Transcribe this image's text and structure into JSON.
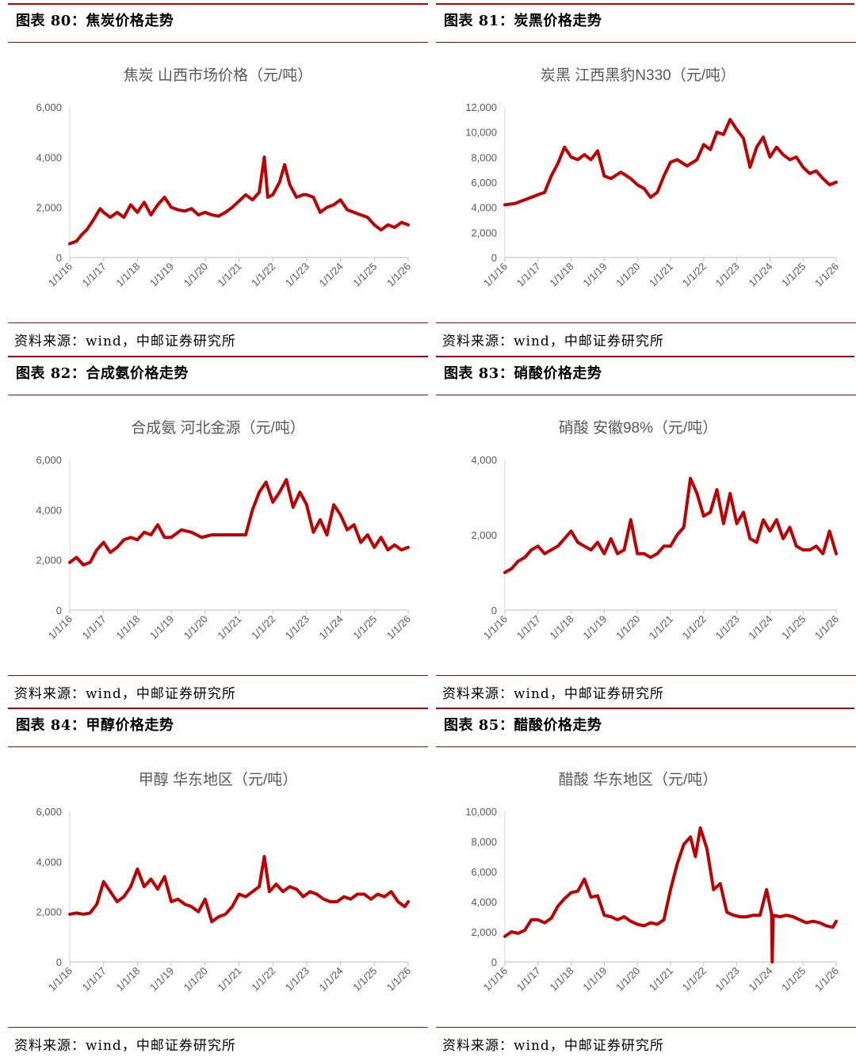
{
  "source_text": "资料来源：wind，中邮证券研究所",
  "colors": {
    "accent": "#c00000",
    "series": "#c00000"
  },
  "panels": [
    {
      "id": "fig80",
      "title": "图表 80：焦炭价格走势",
      "chart_data": {
        "type": "line",
        "title": "焦炭 山西市场价格（元/吨）",
        "x_ticks": [
          "1/1/16",
          "1/1/17",
          "1/1/18",
          "1/1/19",
          "1/1/20",
          "1/1/21",
          "1/1/22",
          "1/1/23",
          "1/1/24",
          "1/1/25",
          "1/1/26"
        ],
        "y_ticks": [
          "0",
          "2,000",
          "4,000",
          "6,000"
        ],
        "ylim": [
          0,
          6000
        ],
        "xlim": [
          2016.0,
          2026.0
        ],
        "series": [
          {
            "x": [
              2016.0,
              2016.2,
              2016.35,
              2016.5,
              2016.7,
              2016.9,
              2017.0,
              2017.2,
              2017.4,
              2017.6,
              2017.8,
              2018.0,
              2018.2,
              2018.4,
              2018.6,
              2018.8,
              2019.0,
              2019.2,
              2019.4,
              2019.6,
              2019.8,
              2020.0,
              2020.2,
              2020.4,
              2020.6,
              2020.8,
              2021.0,
              2021.2,
              2021.4,
              2021.6,
              2021.75,
              2021.85,
              2022.0,
              2022.2,
              2022.35,
              2022.5,
              2022.7,
              2022.9,
              2023.0,
              2023.2,
              2023.4,
              2023.6,
              2023.8,
              2024.0,
              2024.2,
              2024.4,
              2024.6,
              2024.8,
              2025.0,
              2025.2,
              2025.4,
              2025.6,
              2025.8,
              2026.0
            ],
            "y": [
              550,
              650,
              900,
              1100,
              1500,
              1950,
              1800,
              1600,
              1800,
              1600,
              2100,
              1800,
              2200,
              1700,
              2100,
              2400,
              2000,
              1900,
              1850,
              1950,
              1700,
              1800,
              1700,
              1650,
              1800,
              2000,
              2250,
              2500,
              2300,
              2600,
              4000,
              2400,
              2500,
              3000,
              3700,
              2900,
              2400,
              2500,
              2500,
              2400,
              1800,
              2000,
              2100,
              2300,
              1900,
              1800,
              1700,
              1600,
              1300,
              1100,
              1300,
              1200,
              1400,
              1300
            ]
          }
        ]
      }
    },
    {
      "id": "fig81",
      "title": "图表 81：炭黑价格走势",
      "chart_data": {
        "type": "line",
        "title": "炭黑 江西黑豹N330（元/吨）",
        "x_ticks": [
          "1/1/16",
          "1/1/17",
          "1/1/18",
          "1/1/19",
          "1/1/20",
          "1/1/21",
          "1/1/22",
          "1/1/23",
          "1/1/24",
          "1/1/25",
          "1/1/26"
        ],
        "y_ticks": [
          "0",
          "2,000",
          "4,000",
          "6,000",
          "8,000",
          "10,000",
          "12,000"
        ],
        "ylim": [
          0,
          12000
        ],
        "xlim": [
          2016.0,
          2026.0
        ],
        "series": [
          {
            "x": [
              2016.0,
              2016.3,
              2016.5,
              2016.8,
              2017.0,
              2017.2,
              2017.4,
              2017.6,
              2017.8,
              2018.0,
              2018.2,
              2018.4,
              2018.6,
              2018.8,
              2019.0,
              2019.2,
              2019.5,
              2019.8,
              2020.0,
              2020.2,
              2020.4,
              2020.6,
              2020.8,
              2021.0,
              2021.2,
              2021.5,
              2021.8,
              2022.0,
              2022.2,
              2022.4,
              2022.6,
              2022.8,
              2023.0,
              2023.2,
              2023.4,
              2023.6,
              2023.8,
              2024.0,
              2024.2,
              2024.4,
              2024.6,
              2024.8,
              2025.0,
              2025.2,
              2025.4,
              2025.6,
              2025.8,
              2026.0
            ],
            "y": [
              4200,
              4300,
              4500,
              4800,
              5000,
              5200,
              6500,
              7500,
              8800,
              8000,
              7800,
              8200,
              7800,
              8500,
              6500,
              6300,
              6800,
              6300,
              5800,
              5500,
              4800,
              5200,
              6500,
              7600,
              7800,
              7300,
              7800,
              9000,
              8600,
              10000,
              9800,
              11000,
              10200,
              9500,
              7200,
              8800,
              9600,
              8000,
              8800,
              8200,
              7800,
              8000,
              7200,
              6700,
              6900,
              6300,
              5800,
              6000
            ]
          }
        ]
      }
    },
    {
      "id": "fig82",
      "title": "图表 82：合成氨价格走势",
      "chart_data": {
        "type": "line",
        "title": "合成氨 河北金源（元/吨）",
        "x_ticks": [
          "1/1/16",
          "1/1/17",
          "1/1/18",
          "1/1/19",
          "1/1/20",
          "1/1/21",
          "1/1/22",
          "1/1/23",
          "1/1/24",
          "1/1/25",
          "1/1/26"
        ],
        "y_ticks": [
          "0",
          "2,000",
          "4,000",
          "6,000"
        ],
        "ylim": [
          0,
          6000
        ],
        "xlim": [
          2016.0,
          2026.0
        ],
        "series": [
          {
            "x": [
              2016.0,
              2016.2,
              2016.4,
              2016.6,
              2016.8,
              2017.0,
              2017.2,
              2017.4,
              2017.6,
              2017.8,
              2018.0,
              2018.2,
              2018.4,
              2018.6,
              2018.8,
              2019.0,
              2019.3,
              2019.6,
              2019.9,
              2020.2,
              2020.5,
              2020.8,
              2021.0,
              2021.2,
              2021.4,
              2021.6,
              2021.8,
              2022.0,
              2022.2,
              2022.4,
              2022.6,
              2022.8,
              2023.0,
              2023.2,
              2023.4,
              2023.6,
              2023.8,
              2024.0,
              2024.2,
              2024.4,
              2024.6,
              2024.8,
              2025.0,
              2025.2,
              2025.4,
              2025.6,
              2025.8,
              2026.0
            ],
            "y": [
              1900,
              2100,
              1800,
              1900,
              2400,
              2700,
              2300,
              2500,
              2800,
              2900,
              2800,
              3100,
              3000,
              3400,
              2900,
              2900,
              3200,
              3100,
              2900,
              3000,
              3000,
              3000,
              3000,
              3000,
              4000,
              4700,
              5100,
              4300,
              4700,
              5200,
              4100,
              4700,
              4200,
              3100,
              3600,
              3000,
              4200,
              3800,
              3200,
              3400,
              2700,
              3000,
              2500,
              2900,
              2400,
              2600,
              2400,
              2500
            ]
          }
        ]
      }
    },
    {
      "id": "fig83",
      "title": "图表 83：硝酸价格走势",
      "chart_data": {
        "type": "line",
        "title": "硝酸 安徽98%（元/吨）",
        "x_ticks": [
          "1/1/16",
          "1/1/17",
          "1/1/18",
          "1/1/19",
          "1/1/20",
          "1/1/21",
          "1/1/22",
          "1/1/23",
          "1/1/24",
          "1/1/25",
          "1/1/26"
        ],
        "y_ticks": [
          "0",
          "2,000",
          "4,000"
        ],
        "ylim": [
          0,
          4000
        ],
        "xlim": [
          2016.0,
          2026.0
        ],
        "series": [
          {
            "x": [
              2016.0,
              2016.2,
              2016.4,
              2016.6,
              2016.8,
              2017.0,
              2017.2,
              2017.4,
              2017.6,
              2017.8,
              2018.0,
              2018.2,
              2018.4,
              2018.6,
              2018.8,
              2019.0,
              2019.2,
              2019.4,
              2019.6,
              2019.8,
              2020.0,
              2020.2,
              2020.4,
              2020.6,
              2020.8,
              2021.0,
              2021.2,
              2021.4,
              2021.6,
              2021.8,
              2022.0,
              2022.2,
              2022.4,
              2022.6,
              2022.8,
              2023.0,
              2023.2,
              2023.4,
              2023.6,
              2023.8,
              2024.0,
              2024.2,
              2024.4,
              2024.6,
              2024.8,
              2025.0,
              2025.2,
              2025.4,
              2025.6,
              2025.8,
              2026.0
            ],
            "y": [
              1000,
              1100,
              1300,
              1400,
              1600,
              1700,
              1500,
              1600,
              1700,
              1900,
              2100,
              1800,
              1700,
              1600,
              1800,
              1500,
              1900,
              1500,
              1600,
              2400,
              1500,
              1500,
              1400,
              1500,
              1700,
              1700,
              2000,
              2200,
              3500,
              3100,
              2500,
              2600,
              3200,
              2300,
              3100,
              2300,
              2600,
              1900,
              1800,
              2400,
              2100,
              2400,
              1900,
              2200,
              1700,
              1600,
              1600,
              1700,
              1500,
              2100,
              1500
            ]
          }
        ]
      }
    },
    {
      "id": "fig84",
      "title": "图表 84：甲醇价格走势",
      "chart_data": {
        "type": "line",
        "title": "甲醇 华东地区（元/吨）",
        "x_ticks": [
          "1/1/16",
          "1/1/17",
          "1/1/18",
          "1/1/19",
          "1/1/20",
          "1/1/21",
          "1/1/22",
          "1/1/23",
          "1/1/24",
          "1/1/25",
          "1/1/26"
        ],
        "y_ticks": [
          "0",
          "2,000",
          "4,000",
          "6,000"
        ],
        "ylim": [
          0,
          6000
        ],
        "xlim": [
          2016.0,
          2026.0
        ],
        "series": [
          {
            "x": [
              2016.0,
              2016.2,
              2016.4,
              2016.6,
              2016.8,
              2017.0,
              2017.2,
              2017.4,
              2017.6,
              2017.8,
              2018.0,
              2018.2,
              2018.4,
              2018.6,
              2018.8,
              2019.0,
              2019.2,
              2019.4,
              2019.6,
              2019.8,
              2020.0,
              2020.2,
              2020.4,
              2020.6,
              2020.8,
              2021.0,
              2021.2,
              2021.4,
              2021.6,
              2021.75,
              2021.9,
              2022.1,
              2022.3,
              2022.5,
              2022.7,
              2022.9,
              2023.1,
              2023.3,
              2023.5,
              2023.7,
              2023.9,
              2024.1,
              2024.3,
              2024.5,
              2024.7,
              2024.9,
              2025.1,
              2025.3,
              2025.5,
              2025.7,
              2025.9,
              2026.0
            ],
            "y": [
              1900,
              1950,
              1900,
              1950,
              2300,
              3200,
              2800,
              2400,
              2600,
              3000,
              3700,
              3000,
              3300,
              2900,
              3400,
              2400,
              2500,
              2300,
              2200,
              2000,
              2500,
              1600,
              1800,
              1900,
              2200,
              2700,
              2600,
              2800,
              3000,
              4200,
              2800,
              3100,
              2800,
              3000,
              2900,
              2600,
              2800,
              2700,
              2500,
              2400,
              2400,
              2600,
              2500,
              2700,
              2700,
              2500,
              2700,
              2600,
              2800,
              2400,
              2200,
              2400
            ]
          }
        ]
      }
    },
    {
      "id": "fig85",
      "title": "图表 85：醋酸价格走势",
      "chart_data": {
        "type": "line",
        "title": "醋酸 华东地区（元/吨）",
        "x_ticks": [
          "1/1/16",
          "1/1/17",
          "1/1/18",
          "1/1/19",
          "1/1/20",
          "1/1/21",
          "1/1/22",
          "1/1/23",
          "1/1/24",
          "1/1/25",
          "1/1/26"
        ],
        "y_ticks": [
          "0",
          "2,000",
          "4,000",
          "6,000",
          "8,000",
          "10,000"
        ],
        "ylim": [
          0,
          10000
        ],
        "xlim": [
          2016.0,
          2026.0
        ],
        "series": [
          {
            "x": [
              2016.0,
              2016.2,
              2016.4,
              2016.6,
              2016.8,
              2017.0,
              2017.2,
              2017.4,
              2017.6,
              2017.8,
              2018.0,
              2018.2,
              2018.4,
              2018.6,
              2018.8,
              2019.0,
              2019.2,
              2019.4,
              2019.6,
              2019.8,
              2020.0,
              2020.2,
              2020.4,
              2020.6,
              2020.8,
              2021.0,
              2021.2,
              2021.4,
              2021.6,
              2021.75,
              2021.9,
              2022.1,
              2022.3,
              2022.5,
              2022.7,
              2022.9,
              2023.1,
              2023.3,
              2023.5,
              2023.7,
              2023.9,
              2024.05,
              2024.07,
              2024.1,
              2024.3,
              2024.5,
              2024.7,
              2024.9,
              2025.1,
              2025.3,
              2025.5,
              2025.7,
              2025.9,
              2026.0
            ],
            "y": [
              1700,
              2000,
              1900,
              2100,
              2800,
              2800,
              2600,
              2900,
              3700,
              4200,
              4600,
              4700,
              5500,
              4300,
              4400,
              3100,
              3000,
              2800,
              3000,
              2700,
              2500,
              2400,
              2600,
              2500,
              2800,
              4800,
              6500,
              7800,
              8300,
              7000,
              8900,
              7500,
              4800,
              5200,
              3300,
              3100,
              3000,
              3000,
              3100,
              3100,
              4800,
              3200,
              0,
              3100,
              3000,
              3100,
              3000,
              2800,
              2600,
              2700,
              2600,
              2400,
              2300,
              2700
            ]
          }
        ]
      }
    }
  ]
}
